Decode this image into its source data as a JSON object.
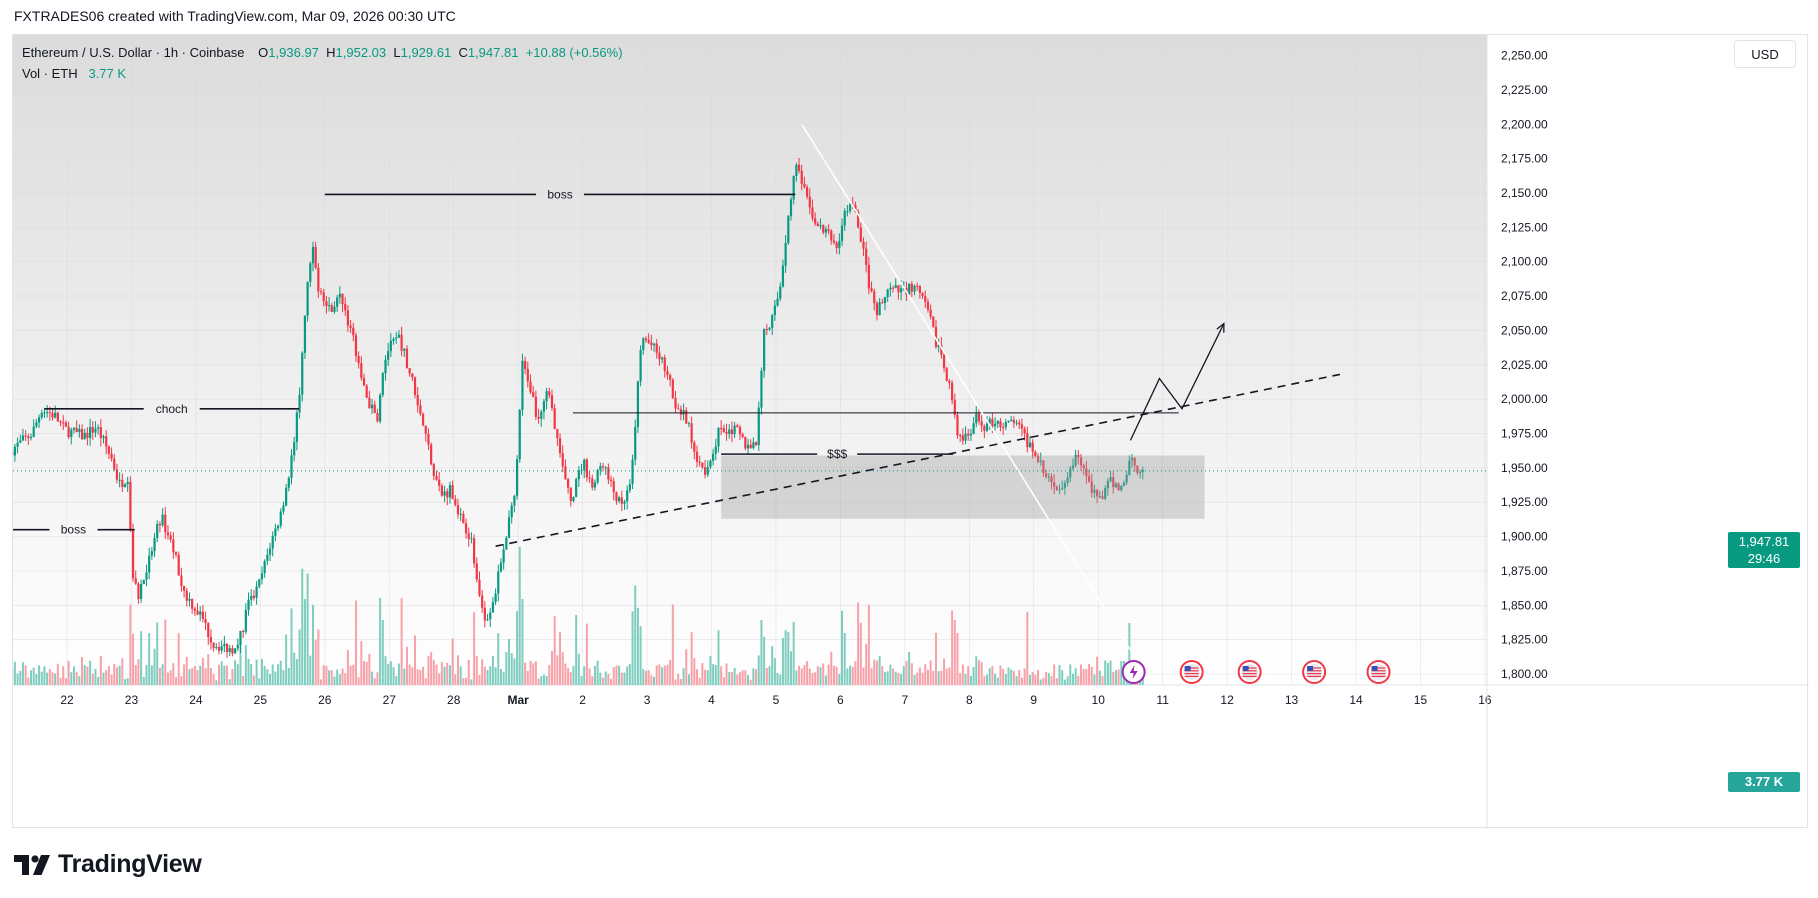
{
  "header": {
    "attribution": "FXTRADES06 created with TradingView.com, Mar 09, 2026 00:30 UTC"
  },
  "legend": {
    "symbol": "Ethereum / U.S. Dollar · 1h · Coinbase",
    "open_label": "O",
    "open": "1,936.97",
    "high_label": "H",
    "high": "1,952.03",
    "low_label": "L",
    "low": "1,929.61",
    "close_label": "C",
    "close": "1,947.81",
    "change": "+10.88 (+0.56%)",
    "vol_label": "Vol · ETH",
    "vol_value": "3.77 K"
  },
  "currency_button": "USD",
  "price_tag": {
    "price": "1,947.81",
    "countdown": "29:46"
  },
  "volume_tag": "3.77 K",
  "brand": "TradingView",
  "colors": {
    "up": "#089981",
    "down": "#f23645",
    "vol_up": "#7fcdbf",
    "vol_down": "#f7a1a8",
    "accent": "#089981"
  },
  "chart_data": {
    "type": "candlestick",
    "instrument": "Ethereum / U.S. Dollar",
    "interval": "1h",
    "exchange": "Coinbase",
    "ylim": [
      1792,
      2265
    ],
    "y_ticks": [
      1800,
      1825,
      1850,
      1875,
      1900,
      1925,
      1950,
      1975,
      2000,
      2025,
      2050,
      2075,
      2100,
      2125,
      2150,
      2175,
      2200,
      2225,
      2250
    ],
    "y_tick_labels": [
      "1,800.00",
      "1,825.00",
      "1,850.00",
      "1,875.00",
      "1,900.00",
      "1,925.00",
      "1,950.00",
      "1,975.00",
      "2,000.00",
      "2,025.00",
      "2,050.00",
      "2,075.00",
      "2,100.00",
      "2,125.00",
      "2,150.00",
      "2,175.00",
      "2,200.00",
      "2,225.00",
      "2,250.00"
    ],
    "x_range_days": [
      -0.85,
      22.0
    ],
    "x_ticks": [
      {
        "day": 0,
        "label": "22"
      },
      {
        "day": 1,
        "label": "23"
      },
      {
        "day": 2,
        "label": "24"
      },
      {
        "day": 3,
        "label": "25"
      },
      {
        "day": 4,
        "label": "26"
      },
      {
        "day": 5,
        "label": "27"
      },
      {
        "day": 6,
        "label": "28"
      },
      {
        "day": 7,
        "label": "Mar"
      },
      {
        "day": 8,
        "label": "2"
      },
      {
        "day": 9,
        "label": "3"
      },
      {
        "day": 10,
        "label": "4"
      },
      {
        "day": 11,
        "label": "5"
      },
      {
        "day": 12,
        "label": "6"
      },
      {
        "day": 13,
        "label": "7"
      },
      {
        "day": 14,
        "label": "8"
      },
      {
        "day": 15,
        "label": "9"
      },
      {
        "day": 16,
        "label": "10"
      },
      {
        "day": 17,
        "label": "11"
      },
      {
        "day": 18,
        "label": "12"
      },
      {
        "day": 19,
        "label": "13"
      },
      {
        "day": 20,
        "label": "14"
      },
      {
        "day": 21,
        "label": "15"
      },
      {
        "day": 22,
        "label": "16"
      }
    ],
    "price_anchors": [
      [
        -0.85,
        1962
      ],
      [
        -0.5,
        1975
      ],
      [
        -0.35,
        1993
      ],
      [
        -0.15,
        1988
      ],
      [
        0.0,
        1978
      ],
      [
        0.3,
        1973
      ],
      [
        0.5,
        1980
      ],
      [
        0.75,
        1955
      ],
      [
        0.85,
        1938
      ],
      [
        1.0,
        1945
      ],
      [
        1.05,
        1870
      ],
      [
        1.15,
        1858
      ],
      [
        1.3,
        1880
      ],
      [
        1.5,
        1915
      ],
      [
        1.7,
        1890
      ],
      [
        1.85,
        1860
      ],
      [
        2.15,
        1840
      ],
      [
        2.3,
        1822
      ],
      [
        2.6,
        1818
      ],
      [
        2.75,
        1830
      ],
      [
        2.85,
        1850
      ],
      [
        3.0,
        1862
      ],
      [
        3.1,
        1878
      ],
      [
        3.2,
        1895
      ],
      [
        3.35,
        1915
      ],
      [
        3.5,
        1950
      ],
      [
        3.65,
        2000
      ],
      [
        3.75,
        2075
      ],
      [
        3.85,
        2110
      ],
      [
        3.95,
        2080
      ],
      [
        4.1,
        2065
      ],
      [
        4.3,
        2075
      ],
      [
        4.55,
        2030
      ],
      [
        4.7,
        2000
      ],
      [
        4.85,
        1985
      ],
      [
        5.0,
        2035
      ],
      [
        5.2,
        2045
      ],
      [
        5.45,
        2005
      ],
      [
        5.6,
        1975
      ],
      [
        5.75,
        1945
      ],
      [
        5.85,
        1930
      ],
      [
        6.0,
        1935
      ],
      [
        6.15,
        1915
      ],
      [
        6.3,
        1900
      ],
      [
        6.45,
        1853
      ],
      [
        6.55,
        1840
      ],
      [
        6.7,
        1862
      ],
      [
        6.85,
        1900
      ],
      [
        7.0,
        1938
      ],
      [
        7.1,
        2025
      ],
      [
        7.2,
        2015
      ],
      [
        7.35,
        1985
      ],
      [
        7.5,
        2005
      ],
      [
        7.6,
        1985
      ],
      [
        7.75,
        1945
      ],
      [
        7.85,
        1925
      ],
      [
        8.05,
        1955
      ],
      [
        8.2,
        1935
      ],
      [
        8.35,
        1955
      ],
      [
        8.45,
        1940
      ],
      [
        8.65,
        1920
      ],
      [
        8.8,
        1940
      ],
      [
        8.95,
        2045
      ],
      [
        9.1,
        2040
      ],
      [
        9.3,
        2025
      ],
      [
        9.5,
        1995
      ],
      [
        9.65,
        1985
      ],
      [
        9.8,
        1960
      ],
      [
        9.95,
        1948
      ],
      [
        10.15,
        1975
      ],
      [
        10.3,
        1980
      ],
      [
        10.45,
        1975
      ],
      [
        10.6,
        1965
      ],
      [
        10.75,
        1970
      ],
      [
        10.85,
        2050
      ],
      [
        11.0,
        2060
      ],
      [
        11.1,
        2080
      ],
      [
        11.25,
        2140
      ],
      [
        11.35,
        2170
      ],
      [
        11.45,
        2155
      ],
      [
        11.55,
        2140
      ],
      [
        11.7,
        2125
      ],
      [
        11.85,
        2120
      ],
      [
        12.0,
        2110
      ],
      [
        12.1,
        2135
      ],
      [
        12.2,
        2145
      ],
      [
        12.35,
        2120
      ],
      [
        12.5,
        2080
      ],
      [
        12.6,
        2060
      ],
      [
        12.75,
        2080
      ],
      [
        12.95,
        2078
      ],
      [
        13.15,
        2082
      ],
      [
        13.3,
        2075
      ],
      [
        13.45,
        2055
      ],
      [
        13.6,
        2030
      ],
      [
        13.75,
        2010
      ],
      [
        13.85,
        1975
      ],
      [
        14.0,
        1970
      ],
      [
        14.15,
        1985
      ],
      [
        14.3,
        1980
      ],
      [
        14.45,
        1985
      ],
      [
        14.6,
        1980
      ],
      [
        14.75,
        1985
      ],
      [
        14.85,
        1975
      ],
      [
        15.0,
        1965
      ],
      [
        15.1,
        1960
      ],
      [
        15.2,
        1945
      ],
      [
        15.35,
        1935
      ],
      [
        15.5,
        1940
      ],
      [
        15.65,
        1955
      ],
      [
        15.75,
        1960
      ],
      [
        15.85,
        1945
      ],
      [
        15.95,
        1930
      ],
      [
        16.1,
        1930
      ],
      [
        16.25,
        1940
      ],
      [
        16.4,
        1935
      ],
      [
        16.55,
        1958
      ],
      [
        16.65,
        1950
      ],
      [
        16.72,
        1948
      ]
    ],
    "annotations": [
      {
        "type": "hline",
        "label": "boss",
        "y": 2149,
        "x1": 4.0,
        "x2": 11.3
      },
      {
        "type": "hline",
        "label": "choch",
        "y": 1993,
        "x1": -0.35,
        "x2": 3.6
      },
      {
        "type": "hline",
        "label": "boss",
        "y": 1905,
        "x1": -0.85,
        "x2": 1.05
      },
      {
        "type": "hline",
        "label": "$$$",
        "y": 1960,
        "x1": 10.15,
        "x2": 13.75
      },
      {
        "type": "hline",
        "label": "",
        "y": 1990,
        "x1": 7.85,
        "x2": 17.25
      },
      {
        "type": "trendline",
        "style": "dashed",
        "from": [
          6.65,
          1893
        ],
        "to": [
          19.75,
          2018
        ]
      },
      {
        "type": "trendline",
        "style": "solid",
        "color": "#ffffff",
        "from": [
          11.4,
          2200
        ],
        "to": [
          16.6,
          1810
        ]
      },
      {
        "type": "rectangle",
        "label": "",
        "x1": 10.15,
        "x2": 17.65,
        "y1": 1913,
        "y2": 1959
      },
      {
        "type": "path",
        "points": [
          [
            16.5,
            1970
          ],
          [
            16.95,
            2015
          ],
          [
            17.3,
            1993
          ],
          [
            17.95,
            2055
          ]
        ]
      }
    ],
    "event_markers_days": [
      16.55,
      17.45,
      18.35,
      19.35,
      20.35
    ]
  }
}
